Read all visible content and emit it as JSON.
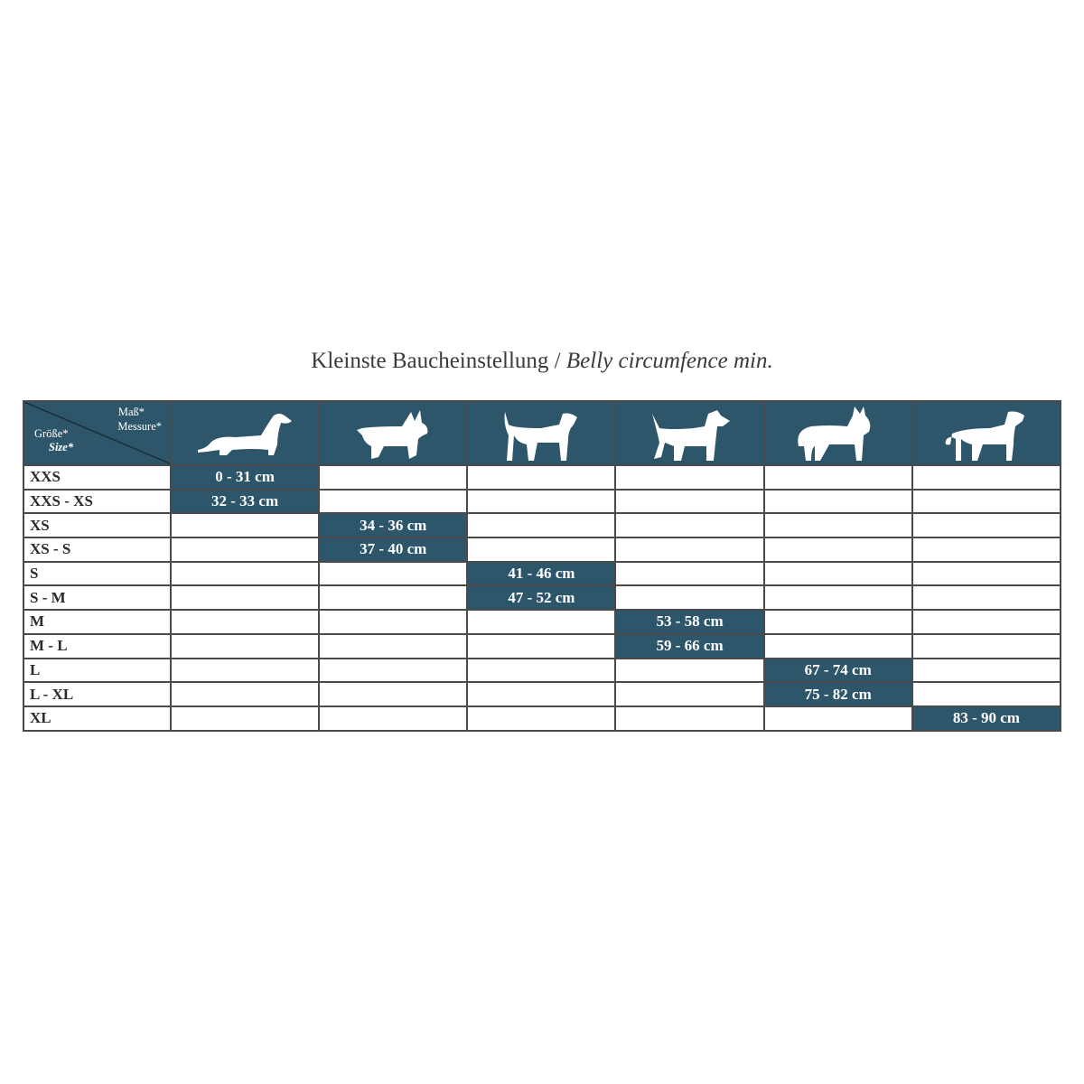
{
  "title": {
    "de": "Kleinste Baucheinstellung /",
    "en": "Belly circumfence min."
  },
  "header": {
    "measure_de": "Maß*",
    "measure_en": "Messure*",
    "size_de": "Größe*",
    "size_en": "Size*",
    "dogs": [
      "dachshund-icon",
      "terrier-icon",
      "medium-dog-icon",
      "schnauzer-icon",
      "shepherd-icon",
      "large-dog-icon"
    ]
  },
  "colors": {
    "accent": "#2e566b",
    "border": "#4a4a4a"
  },
  "rows": [
    {
      "size": "XXS",
      "col": 0,
      "value": "0 - 31 cm"
    },
    {
      "size": "XXS - XS",
      "col": 0,
      "value": "32 - 33 cm"
    },
    {
      "size": "XS",
      "col": 1,
      "value": "34 - 36 cm"
    },
    {
      "size": "XS - S",
      "col": 1,
      "value": "37 - 40 cm"
    },
    {
      "size": "S",
      "col": 2,
      "value": "41 - 46 cm"
    },
    {
      "size": "S - M",
      "col": 2,
      "value": "47 - 52 cm"
    },
    {
      "size": "M",
      "col": 3,
      "value": "53 - 58 cm"
    },
    {
      "size": "M - L",
      "col": 3,
      "value": "59 - 66 cm"
    },
    {
      "size": "L",
      "col": 4,
      "value": "67 - 74 cm"
    },
    {
      "size": "L - XL",
      "col": 4,
      "value": "75 - 82 cm"
    },
    {
      "size": "XL",
      "col": 5,
      "value": "83 - 90 cm"
    }
  ]
}
